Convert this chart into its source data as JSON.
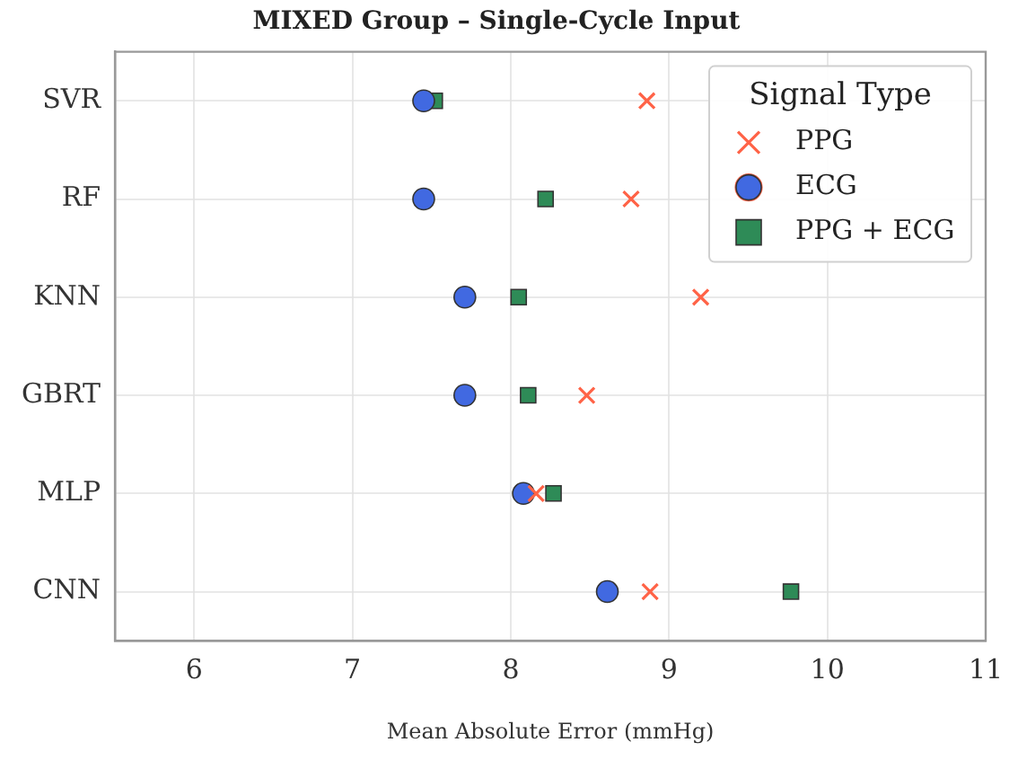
{
  "chart_data": {
    "type": "scatter",
    "orientation": "horizontal",
    "title": "MIXED Group – Single-Cycle Input",
    "xlabel": "Mean Absolute Error (mmHg)",
    "categories": [
      "SVR",
      "RF",
      "KNN",
      "GBRT",
      "MLP",
      "CNN"
    ],
    "series": [
      {
        "name": "PPG",
        "color": "#ff6347",
        "marker": "cross",
        "values": [
          8.86,
          8.76,
          9.2,
          8.48,
          8.16,
          8.88
        ]
      },
      {
        "name": "ECG",
        "color": "#4169e1",
        "marker": "circle",
        "values": [
          7.45,
          7.45,
          7.71,
          7.71,
          8.08,
          8.61
        ]
      },
      {
        "name": "PPG + ECG",
        "color": "#2e8b57",
        "marker": "square",
        "values": [
          7.52,
          8.22,
          8.05,
          8.11,
          8.27,
          9.77
        ]
      }
    ],
    "xlim": [
      5.5,
      11
    ],
    "xticks": [
      6,
      7,
      8,
      9,
      10,
      11
    ],
    "grid": true,
    "legend": "top right",
    "legend_title": "Signal Type"
  }
}
